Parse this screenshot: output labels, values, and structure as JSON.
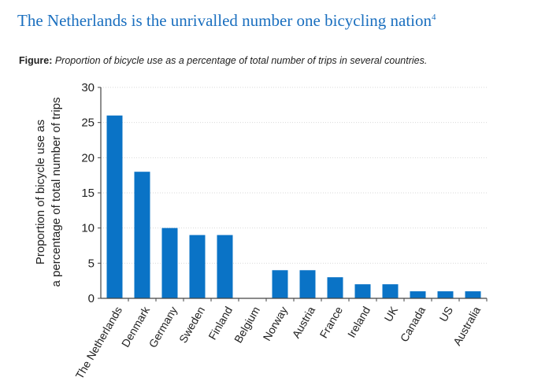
{
  "header": {
    "title": "The Netherlands is the unrivalled number one bicycling nation",
    "footnote_ref": "4"
  },
  "caption": {
    "label": "Figure:",
    "text": "Proportion of bicycle use as a percentage of total number of trips in several countries."
  },
  "colors": {
    "bar": "#0a73c6",
    "title": "#1a6fbf",
    "grid": "#d9d9d9"
  },
  "chart_data": {
    "type": "bar",
    "title": "",
    "ylabel_line1": "Proportion of bicycle use as",
    "ylabel_line2": "a percentage of total number of trips",
    "xlabel": "",
    "categories": [
      "The Netherlands",
      "Denmark",
      "Germany",
      "Sweden",
      "Finland",
      "Belgium",
      "Norway",
      "Austria",
      "France",
      "Ireland",
      "UK",
      "Canada",
      "US",
      "Australia"
    ],
    "values": [
      26,
      18,
      10,
      9,
      9,
      0,
      4,
      4,
      3,
      2,
      2,
      1,
      1,
      1
    ],
    "ylim": [
      0,
      30
    ],
    "yticks": [
      0,
      5,
      10,
      15,
      20,
      25,
      30
    ],
    "grid": true,
    "legend": "none"
  }
}
